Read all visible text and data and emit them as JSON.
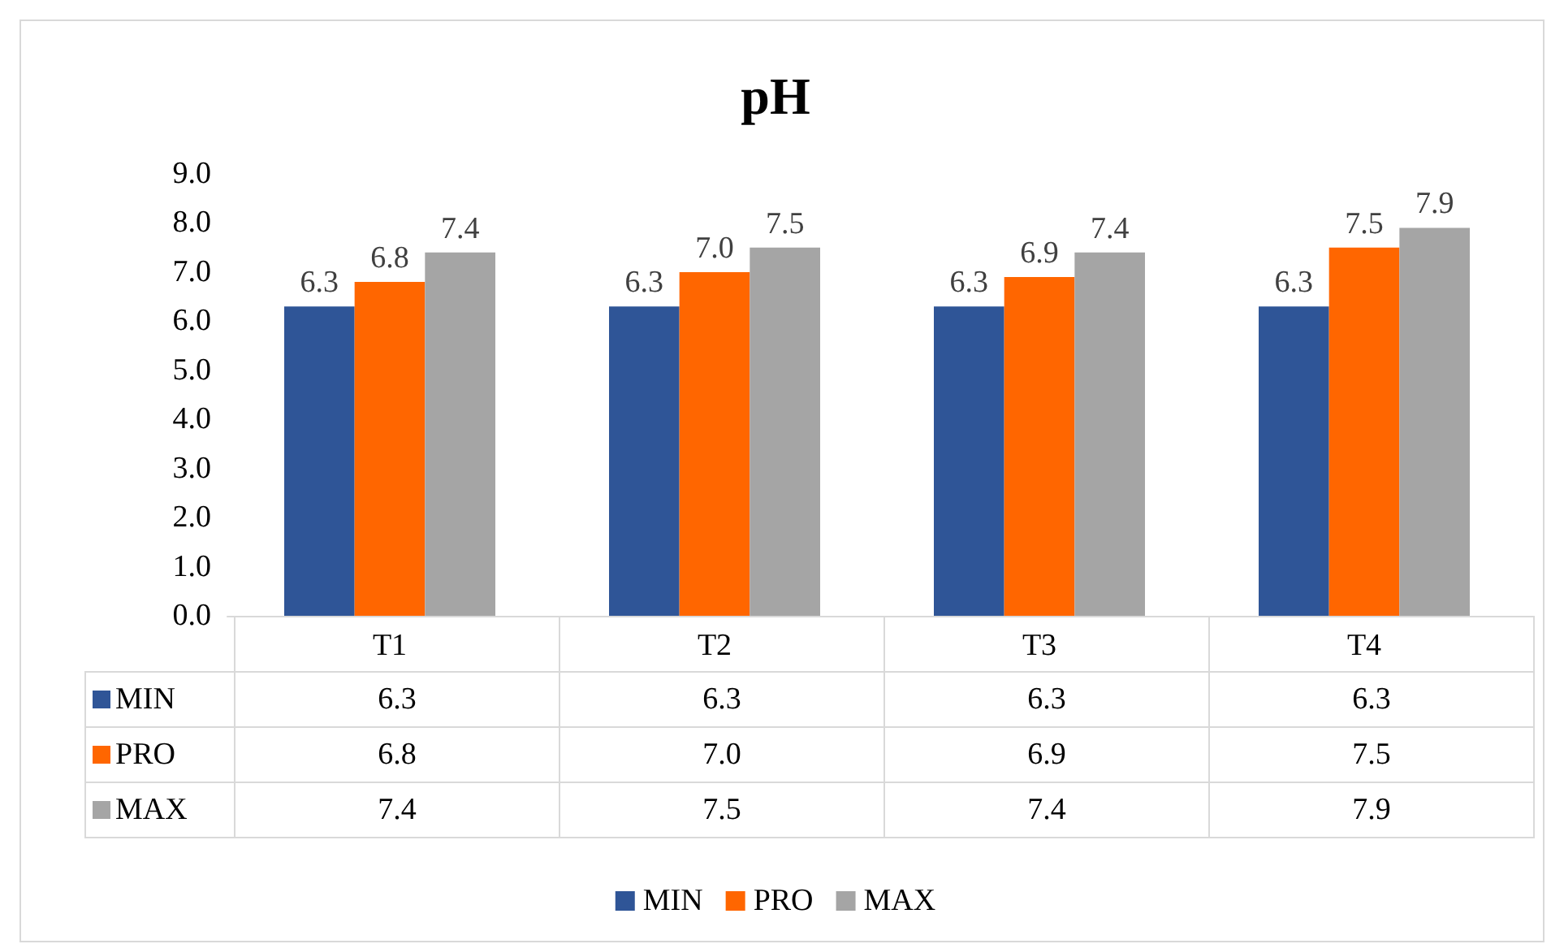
{
  "chart_data": {
    "type": "bar",
    "title": "pH",
    "categories": [
      "T1",
      "T2",
      "T3",
      "T4"
    ],
    "series": [
      {
        "name": "MIN",
        "color": "#2f5597",
        "values": [
          6.3,
          6.3,
          6.3,
          6.3
        ],
        "value_labels": [
          "6.3",
          "6.3",
          "6.3",
          "6.3"
        ]
      },
      {
        "name": "PRO",
        "color": "#ff6600",
        "values": [
          6.8,
          7.0,
          6.9,
          7.5
        ],
        "value_labels": [
          "6.8",
          "7.0",
          "6.9",
          "7.5"
        ]
      },
      {
        "name": "MAX",
        "color": "#a5a5a5",
        "values": [
          7.4,
          7.5,
          7.4,
          7.9
        ],
        "value_labels": [
          "7.4",
          "7.5",
          "7.4",
          "7.9"
        ]
      }
    ],
    "ylim": [
      0,
      9
    ],
    "yticks": [
      {
        "value": 0,
        "label": "0.0"
      },
      {
        "value": 1,
        "label": "1.0"
      },
      {
        "value": 2,
        "label": "2.0"
      },
      {
        "value": 3,
        "label": "3.0"
      },
      {
        "value": 4,
        "label": "4.0"
      },
      {
        "value": 5,
        "label": "5.0"
      },
      {
        "value": 6,
        "label": "6.0"
      },
      {
        "value": 7,
        "label": "7.0"
      },
      {
        "value": 8,
        "label": "8.0"
      },
      {
        "value": 9,
        "label": "9.0"
      }
    ],
    "grid": false,
    "legend": "bottom"
  }
}
